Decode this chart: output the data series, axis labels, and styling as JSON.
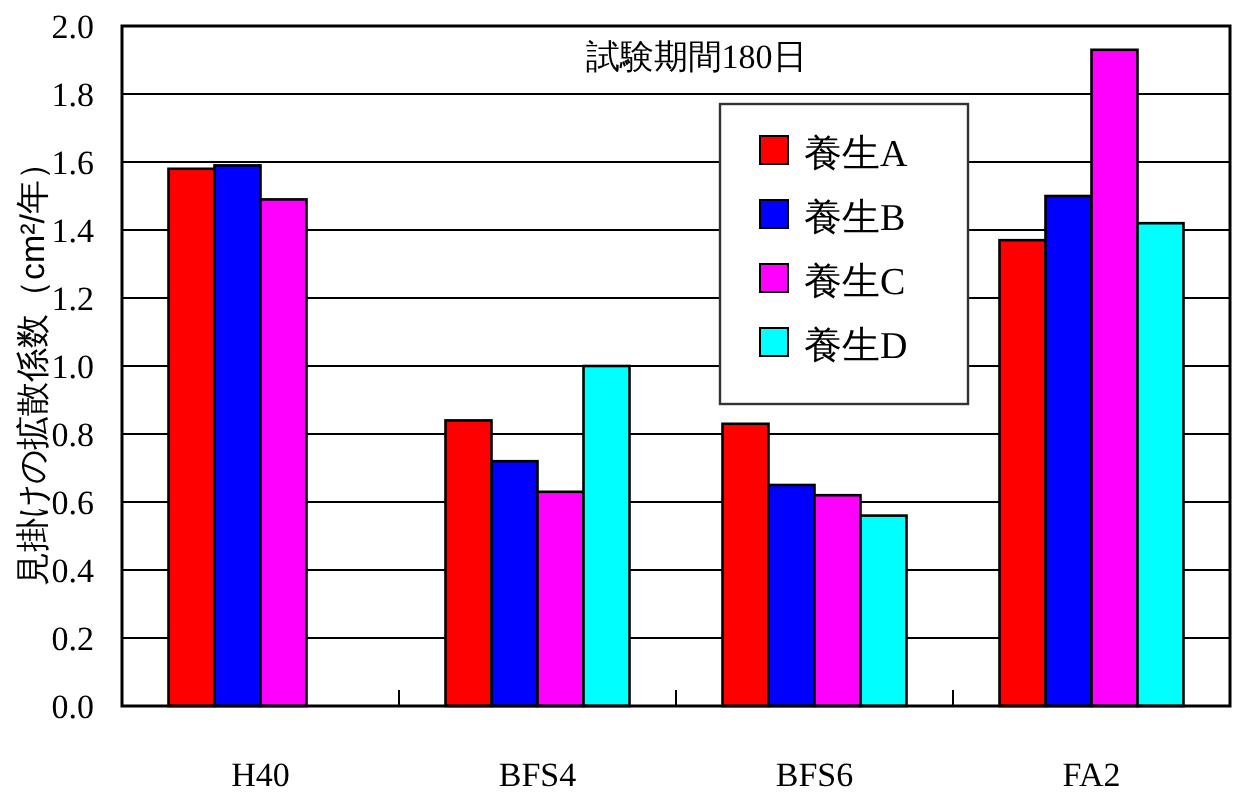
{
  "chart_data": {
    "type": "bar",
    "ylabel": "見掛けの拡散係数（cm²/年）",
    "annotations": [
      "試験期間180日"
    ],
    "categories": [
      "H40",
      "BFS4",
      "BFS6",
      "FA2"
    ],
    "series": [
      {
        "name": "養生A",
        "color": "#ff0000",
        "values": [
          1.58,
          0.84,
          0.83,
          1.37
        ]
      },
      {
        "name": "養生B",
        "color": "#0000ff",
        "values": [
          1.59,
          0.72,
          0.65,
          1.5
        ]
      },
      {
        "name": "養生C",
        "color": "#ff00ff",
        "values": [
          1.49,
          0.63,
          0.62,
          1.93
        ]
      },
      {
        "name": "養生D",
        "color": "#00ffff",
        "values": [
          null,
          1.0,
          0.56,
          1.42
        ]
      }
    ],
    "ylim": [
      0,
      2
    ],
    "yticks": [
      {
        "value": 0,
        "label": "0.0"
      },
      {
        "value": 0.2,
        "label": "0.2"
      },
      {
        "value": 0.4,
        "label": "0.4"
      },
      {
        "value": 0.6,
        "label": "0.6"
      },
      {
        "value": 0.8,
        "label": "0.8"
      },
      {
        "value": 1,
        "label": "1.0"
      },
      {
        "value": 1.2,
        "label": "1.2"
      },
      {
        "value": 1.4,
        "label": "1.4"
      },
      {
        "value": 1.6,
        "label": "1.6"
      },
      {
        "value": 1.8,
        "label": "1.8"
      },
      {
        "value": 2,
        "label": "2.0"
      }
    ],
    "grid": "y",
    "legend": "top right"
  }
}
